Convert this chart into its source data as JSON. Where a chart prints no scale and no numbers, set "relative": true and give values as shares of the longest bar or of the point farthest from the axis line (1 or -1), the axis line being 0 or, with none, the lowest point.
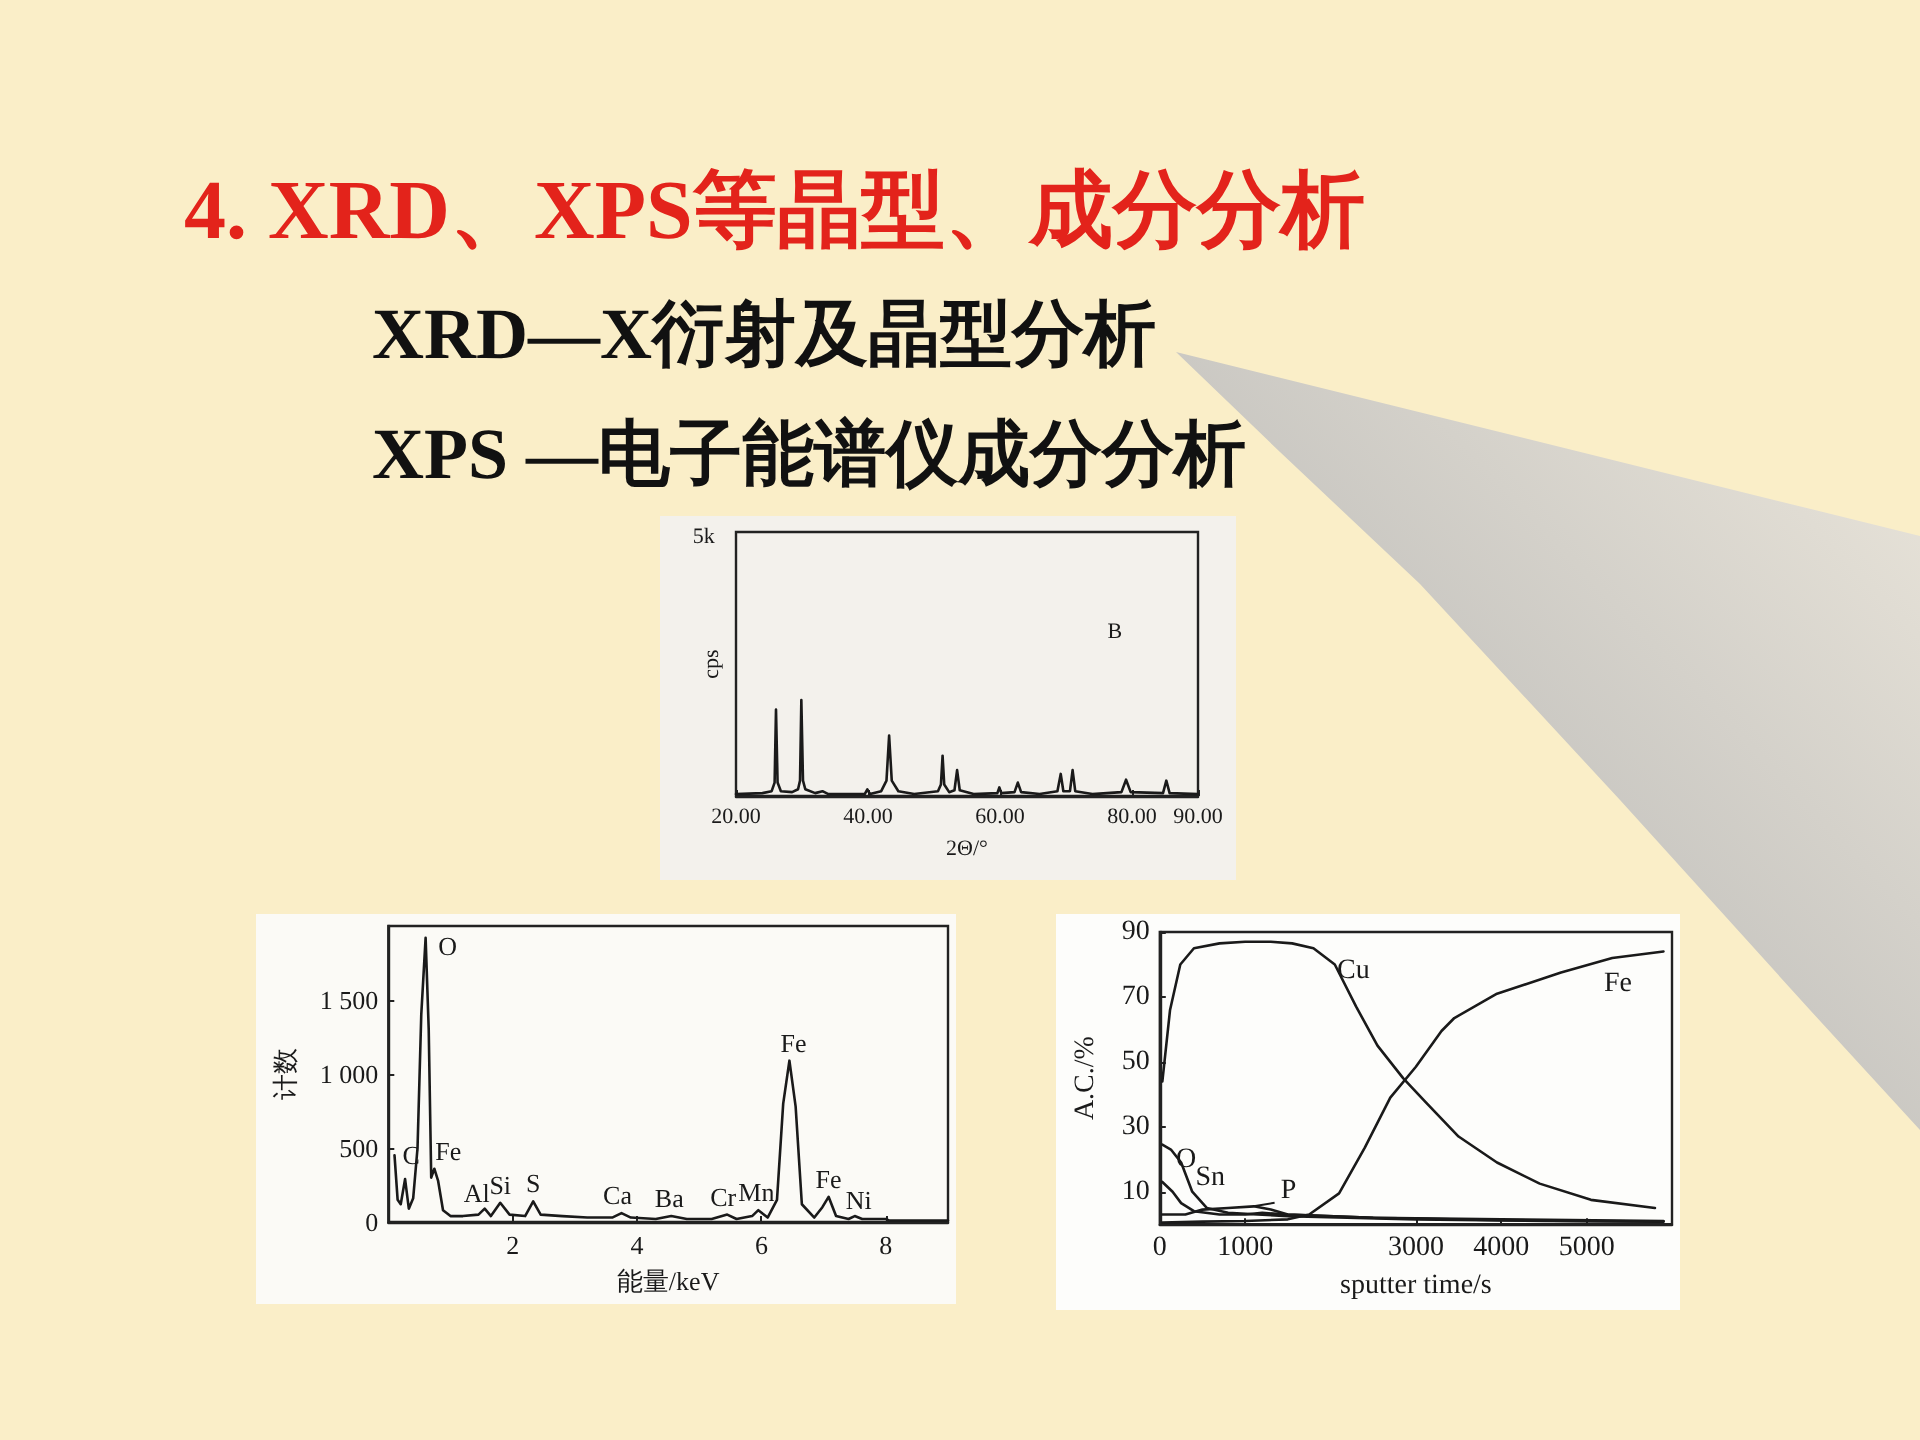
{
  "chart_data": [
    {
      "type": "line",
      "title": "4. XRD、XPS等晶型、成分分析",
      "xlabel": "2Θ/°",
      "ylabel": "cps",
      "annotations": [
        "XRD—X衍射及晶型分析",
        "XPS —电子能谱仪成分分析",
        "5k",
        "B"
      ],
      "x": [
        20,
        24,
        25.4,
        25.85,
        26.06,
        26.3,
        26.8,
        28.5,
        29.4,
        29.7,
        29.9,
        30.15,
        30.5,
        32,
        33.1,
        34,
        39.5,
        39.9,
        40.3,
        42,
        42.8,
        43.2,
        43.6,
        44.6,
        47,
        50.6,
        51.05,
        51.3,
        51.55,
        52.3,
        53.1,
        53.5,
        53.9,
        56,
        59.6,
        59.9,
        60.2,
        62.2,
        62.7,
        63.2,
        66,
        68.7,
        69.2,
        69.6,
        70.6,
        71,
        71.4,
        74,
        78.4,
        79.1,
        79.8,
        84.7,
        85.2,
        85.7,
        90
      ],
      "values": [
        0.02,
        0.03,
        0.05,
        0.14,
        0.9,
        0.14,
        0.05,
        0.04,
        0.07,
        0.16,
        1,
        0.16,
        0.07,
        0.03,
        0.05,
        0.02,
        0.02,
        0.07,
        0.02,
        0.05,
        0.16,
        0.63,
        0.16,
        0.05,
        0.02,
        0.05,
        0.12,
        0.42,
        0.12,
        0.04,
        0.06,
        0.27,
        0.06,
        0.02,
        0.03,
        0.09,
        0.03,
        0.04,
        0.14,
        0.04,
        0.02,
        0.05,
        0.23,
        0.05,
        0.05,
        0.27,
        0.05,
        0.02,
        0.04,
        0.17,
        0.04,
        0.03,
        0.16,
        0.03,
        0.02
      ],
      "color": "#1a1a1a",
      "relative": true,
      "xlim": [
        20,
        90
      ],
      "xticks": [
        {
          "value": 20,
          "label": "20.00"
        },
        {
          "value": 40,
          "label": "40.00"
        },
        {
          "value": 60,
          "label": "60.00"
        },
        {
          "value": 80,
          "label": "80.00"
        },
        {
          "value": 90,
          "label": "90.00"
        }
      ],
      "marker": "none"
    },
    {
      "type": "line",
      "xlabel": "能量/keV",
      "ylabel": "计数",
      "x": [
        0.1,
        0.15,
        0.2,
        0.27,
        0.33,
        0.4,
        0.47,
        0.53,
        0.6,
        0.65,
        0.69,
        0.74,
        0.8,
        0.88,
        1.0,
        1.2,
        1.45,
        1.55,
        1.65,
        1.8,
        1.95,
        2.2,
        2.33,
        2.45,
        2.8,
        3.2,
        3.6,
        3.75,
        3.9,
        4.3,
        4.55,
        4.8,
        5.2,
        5.45,
        5.6,
        5.85,
        5.95,
        6.1,
        6.25,
        6.35,
        6.45,
        6.55,
        6.65,
        6.85,
        6.98,
        7.08,
        7.2,
        7.4,
        7.5,
        7.62,
        8.0,
        8.05,
        8.5,
        9.0
      ],
      "values": [
        450,
        150,
        120,
        290,
        90,
        160,
        500,
        1400,
        1920,
        1300,
        300,
        360,
        280,
        80,
        40,
        40,
        50,
        90,
        40,
        130,
        50,
        40,
        140,
        50,
        40,
        30,
        30,
        60,
        30,
        20,
        40,
        20,
        20,
        50,
        20,
        40,
        80,
        30,
        150,
        800,
        1090,
        780,
        120,
        30,
        100,
        170,
        40,
        20,
        40,
        20,
        20,
        10,
        10,
        10
      ],
      "color": "#1a1a1a",
      "xlim": [
        0,
        9
      ],
      "xticks": [
        2,
        4,
        6,
        8
      ],
      "ylim": [
        0,
        2000
      ],
      "yticks": [
        0,
        500,
        {
          "value": 1000,
          "label": "1 000"
        },
        {
          "value": 1500,
          "label": "1 500"
        }
      ],
      "marker": "none",
      "annotations": [
        {
          "text": "C",
          "x": 0.27,
          "y": 290
        },
        {
          "text": "O",
          "x": 0.6,
          "y": 1920
        },
        {
          "text": "Fe",
          "x": 0.74,
          "y": 360
        },
        {
          "text": "Al",
          "x": 1.55,
          "y": 90
        },
        {
          "text": "Si",
          "x": 1.8,
          "y": 130
        },
        {
          "text": "S",
          "x": 2.33,
          "y": 140
        },
        {
          "text": "Ca",
          "x": 3.75,
          "y": 60
        },
        {
          "text": "Ba",
          "x": 4.55,
          "y": 40
        },
        {
          "text": "Cr",
          "x": 5.45,
          "y": 50
        },
        {
          "text": "Mn",
          "x": 5.95,
          "y": 80
        },
        {
          "text": "Fe",
          "x": 6.45,
          "y": 1090
        },
        {
          "text": "Fe",
          "x": 7.08,
          "y": 170
        },
        {
          "text": "Ni",
          "x": 7.5,
          "y": 40
        }
      ]
    },
    {
      "type": "line",
      "xlabel": "sputter time/s",
      "ylabel": "A.C./%",
      "xlim": [
        0,
        6000
      ],
      "xticks": [
        0,
        1000,
        3000,
        4000,
        5000
      ],
      "ylim": [
        0,
        90
      ],
      "yticks": [
        10,
        30,
        50,
        70,
        90
      ],
      "marker": "none",
      "series": [
        {
          "name": "Cu",
          "color": "#1a1a1a",
          "x": [
            30,
            120,
            240,
            400,
            700,
            1000,
            1300,
            1550,
            1800,
            2050,
            2300,
            2550,
            2850,
            3100,
            3500,
            3950,
            4450,
            5050,
            5800
          ],
          "values": [
            44,
            66,
            80,
            85,
            86.5,
            87,
            87,
            86.5,
            85,
            80,
            67,
            55,
            45,
            38,
            27,
            19,
            12.5,
            7.5,
            5
          ]
        },
        {
          "name": "Fe",
          "color": "#1a1a1a",
          "x": [
            30,
            500,
            1000,
            1500,
            1750,
            2100,
            2400,
            2700,
            3000,
            3300,
            3450,
            3950,
            4700,
            5300,
            5900
          ],
          "values": [
            0.5,
            0.8,
            1,
            1.5,
            3,
            9.5,
            23.5,
            39,
            48.5,
            59.5,
            63.5,
            71,
            77.5,
            82,
            84
          ]
        },
        {
          "name": "O",
          "color": "#1a1a1a",
          "x": [
            30,
            130,
            250,
            380,
            550,
            800,
            1500,
            3000,
            4500,
            5900
          ],
          "values": [
            24.5,
            23,
            19,
            10,
            5,
            3.5,
            2.5,
            1.5,
            1,
            0.8
          ]
        },
        {
          "name": "Sn",
          "color": "#1a1a1a",
          "x": [
            30,
            150,
            250,
            400,
            700,
            1000,
            1200,
            1500,
            2500,
            4000,
            5900
          ],
          "values": [
            13,
            10,
            6.5,
            4,
            3,
            3,
            3.5,
            3,
            2,
            1.5,
            1
          ]
        },
        {
          "name": "P",
          "color": "#1a1a1a",
          "x": [
            30,
            300,
            500,
            800,
            1100,
            1300,
            1500,
            2500,
            4000,
            5900
          ],
          "values": [
            3,
            3,
            4.5,
            5,
            5.5,
            4.5,
            3,
            2,
            1.2,
            0.8
          ]
        }
      ]
    }
  ]
}
